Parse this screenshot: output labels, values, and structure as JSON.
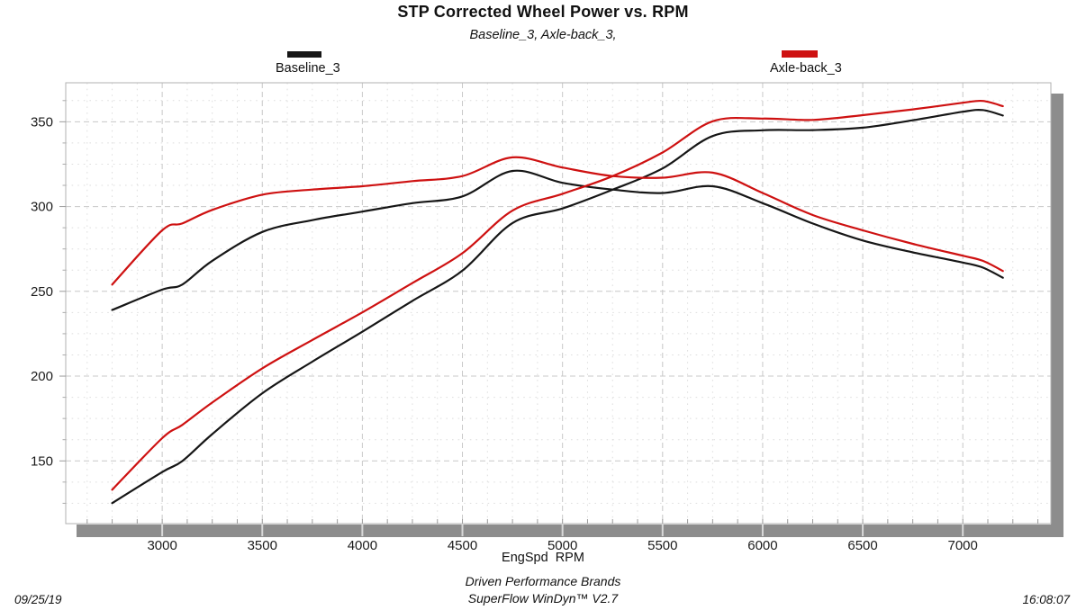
{
  "header": {
    "title": "STP Corrected Wheel Power vs. RPM",
    "subtitle": "Baseline_3, Axle-back_3,"
  },
  "legend": [
    {
      "label": "Baseline_3",
      "color": "#161616"
    },
    {
      "label": "Axle-back_3",
      "color": "#ce1111"
    }
  ],
  "axis": {
    "x_label": "EngSpd  RPM"
  },
  "footer": {
    "brand_line": "Driven Performance Brands",
    "software_line": "SuperFlow WinDyn™ V2.7",
    "date": "09/25/19",
    "time": "16:08:07"
  },
  "chart_data": {
    "type": "line",
    "title": "STP Corrected Wheel Power vs. RPM",
    "xlabel": "EngSpd RPM",
    "ylabel": "",
    "grid": true,
    "legend_position": "top",
    "x_ticks": [
      3000,
      3500,
      4000,
      4500,
      5000,
      5500,
      6000,
      6500,
      7000
    ],
    "y_ticks": [
      150,
      200,
      250,
      300,
      350
    ],
    "x_range": [
      2518,
      7440
    ],
    "y_range": [
      113,
      373
    ],
    "x_minor_step": 125,
    "y_minor_step": 12.5,
    "x": [
      2750,
      3000,
      3100,
      3250,
      3500,
      3750,
      4000,
      4250,
      4500,
      4750,
      5000,
      5250,
      5500,
      5750,
      6000,
      6250,
      6500,
      6750,
      7000,
      7100,
      7200
    ],
    "series": [
      {
        "name": "Baseline_3 (power)",
        "run": "Baseline_3",
        "color": "#161616",
        "values": [
          125.1,
          143.4,
          149.9,
          165.8,
          189.9,
          208.5,
          226.2,
          244.4,
          262.2,
          290.3,
          298.9,
          309.9,
          322.5,
          341.6,
          345.0,
          345.1,
          346.5,
          350.9,
          355.9,
          356.9,
          353.7
        ]
      },
      {
        "name": "Baseline_3 (torque)",
        "run": "Baseline_3",
        "color": "#161616",
        "values": [
          239,
          251,
          254,
          268,
          285,
          292,
          297,
          302,
          306,
          321,
          314,
          310,
          308,
          312,
          302,
          290,
          280,
          273,
          267,
          264,
          258
        ]
      },
      {
        "name": "Axle-back_3 (power)",
        "run": "Axle-back_3",
        "color": "#ce1111",
        "values": [
          133.0,
          163.4,
          171.2,
          184.4,
          204.6,
          221.3,
          237.6,
          254.9,
          272.5,
          297.6,
          307.5,
          317.9,
          331.9,
          350.3,
          351.9,
          351.1,
          353.9,
          357.3,
          361.2,
          362.3,
          359.2
        ]
      },
      {
        "name": "Axle-back_3 (torque)",
        "run": "Axle-back_3",
        "color": "#ce1111",
        "values": [
          254,
          286,
          290,
          298,
          307,
          310,
          312,
          315,
          318,
          329,
          323,
          318,
          317,
          320,
          308,
          295,
          286,
          278,
          271,
          268,
          262
        ]
      }
    ]
  }
}
